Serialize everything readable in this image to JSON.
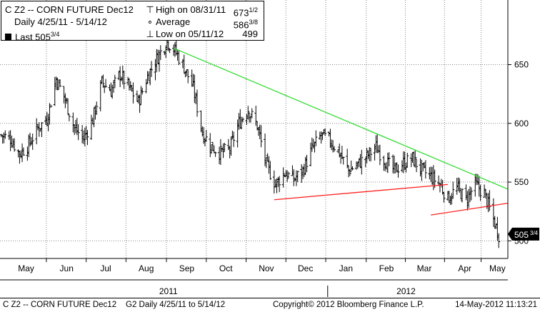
{
  "legend": {
    "title": "C Z2 -- CORN FUTURE   Dec12",
    "period": "Daily  4/25/11 - 5/14/12",
    "last_label": "Last 505",
    "last_frac": "3/4",
    "high_label": "High on 08/31/11",
    "high_value": "673",
    "high_frac": "1/2",
    "avg_label": "Average",
    "avg_value": "586",
    "avg_frac": "3/8",
    "low_label": "Low on 05/11/12",
    "low_value": "499"
  },
  "footer": {
    "ticker": "C Z2 -- CORN FUTURE  Dec12",
    "info": "G2   Daily  4/25/11 to 5/14/12",
    "copyright": "Copyright© 2012 Bloomberg Finance L.P.",
    "timestamp": "14-May-2012  11:13:21"
  },
  "colors": {
    "price_bars": "#000000",
    "downtrend_line": "#33dd33",
    "support_line": "#ff2222",
    "grid": "#888888"
  },
  "chart_data": {
    "type": "bar",
    "style": "ohlc",
    "y_axis": {
      "position": "right",
      "range": [
        485,
        705
      ],
      "ticks": [
        500,
        550,
        600,
        650
      ]
    },
    "x_axis": {
      "range": [
        "2011-04-25",
        "2012-05-18"
      ],
      "months": [
        {
          "label": "May",
          "date": "2011-05-15"
        },
        {
          "label": "Jun",
          "date": "2011-06-15"
        },
        {
          "label": "Jul",
          "date": "2011-07-15"
        },
        {
          "label": "Aug",
          "date": "2011-08-15"
        },
        {
          "label": "Sep",
          "date": "2011-09-15"
        },
        {
          "label": "Oct",
          "date": "2011-10-15"
        },
        {
          "label": "Nov",
          "date": "2011-11-15"
        },
        {
          "label": "Dec",
          "date": "2011-12-15"
        },
        {
          "label": "Jan",
          "date": "2012-01-15"
        },
        {
          "label": "Feb",
          "date": "2012-02-15"
        },
        {
          "label": "Mar",
          "date": "2012-03-15"
        },
        {
          "label": "Apr",
          "date": "2012-04-15"
        },
        {
          "label": "May",
          "date": "2012-05-10"
        }
      ],
      "years": [
        {
          "label": "2011",
          "date": "2011-09-01"
        },
        {
          "label": "2012",
          "date": "2012-03-01"
        }
      ]
    },
    "last": {
      "label": "505",
      "frac": "3/4",
      "value": 505.75
    },
    "series": [
      {
        "points": [
          [
            "2011-04-26",
            590
          ],
          [
            "2011-05-03",
            587
          ],
          [
            "2011-05-10",
            574
          ],
          [
            "2011-05-17",
            582
          ],
          [
            "2011-05-24",
            596
          ],
          [
            "2011-05-31",
            604
          ],
          [
            "2011-06-07",
            638
          ],
          [
            "2011-06-14",
            620
          ],
          [
            "2011-06-21",
            596
          ],
          [
            "2011-06-28",
            587
          ],
          [
            "2011-07-05",
            603
          ],
          [
            "2011-07-12",
            635
          ],
          [
            "2011-07-19",
            628
          ],
          [
            "2011-07-26",
            642
          ],
          [
            "2011-08-02",
            630
          ],
          [
            "2011-08-09",
            618
          ],
          [
            "2011-08-16",
            640
          ],
          [
            "2011-08-23",
            655
          ],
          [
            "2011-08-31",
            670
          ],
          [
            "2011-09-06",
            662
          ],
          [
            "2011-09-13",
            648
          ],
          [
            "2011-09-20",
            630
          ],
          [
            "2011-09-27",
            592
          ],
          [
            "2011-10-04",
            580
          ],
          [
            "2011-10-11",
            575
          ],
          [
            "2011-10-18",
            578
          ],
          [
            "2011-10-25",
            600
          ],
          [
            "2011-11-01",
            612
          ],
          [
            "2011-11-08",
            598
          ],
          [
            "2011-11-15",
            565
          ],
          [
            "2011-11-22",
            548
          ],
          [
            "2011-11-29",
            558
          ],
          [
            "2011-12-06",
            552
          ],
          [
            "2011-12-13",
            560
          ],
          [
            "2011-12-20",
            578
          ],
          [
            "2011-12-27",
            590
          ],
          [
            "2012-01-03",
            585
          ],
          [
            "2012-01-10",
            575
          ],
          [
            "2012-01-17",
            560
          ],
          [
            "2012-01-24",
            565
          ],
          [
            "2012-01-31",
            572
          ],
          [
            "2012-02-07",
            580
          ],
          [
            "2012-02-14",
            568
          ],
          [
            "2012-02-21",
            560
          ],
          [
            "2012-02-28",
            566
          ],
          [
            "2012-03-06",
            570
          ],
          [
            "2012-03-13",
            560
          ],
          [
            "2012-03-20",
            555
          ],
          [
            "2012-03-27",
            548
          ],
          [
            "2012-04-02",
            536
          ],
          [
            "2012-04-09",
            545
          ],
          [
            "2012-04-16",
            535
          ],
          [
            "2012-04-23",
            548
          ],
          [
            "2012-04-30",
            540
          ],
          [
            "2012-05-07",
            518
          ],
          [
            "2012-05-11",
            505
          ]
        ]
      }
    ],
    "trendlines": [
      {
        "role": "downtrend",
        "from": [
          "2011-09-05",
          664
        ],
        "to": [
          "2012-05-18",
          544
        ]
      },
      {
        "role": "support",
        "from": [
          "2011-11-21",
          535
        ],
        "to": [
          "2012-04-02",
          548
        ]
      },
      {
        "role": "support",
        "from": [
          "2012-03-20",
          522
        ],
        "to": [
          "2012-05-18",
          532
        ]
      }
    ]
  }
}
